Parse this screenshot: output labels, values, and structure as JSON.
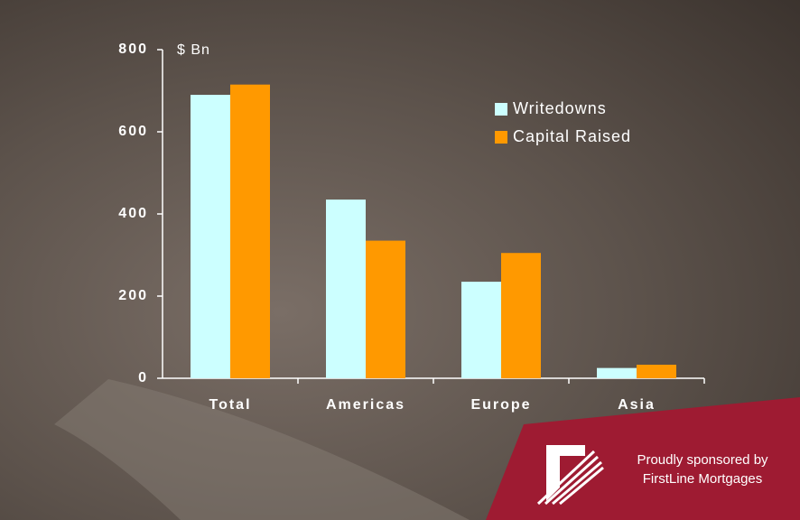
{
  "chart_data": {
    "type": "bar",
    "y_label": "$ Bn",
    "categories": [
      "Total",
      "Americas",
      "Europe",
      "Asia"
    ],
    "series": [
      {
        "name": "Writedowns",
        "color": "#ccffff",
        "values": [
          690,
          435,
          235,
          25
        ]
      },
      {
        "name": "Capital Raised",
        "color": "#ff9900",
        "values": [
          715,
          335,
          305,
          33
        ]
      }
    ],
    "ylim": [
      0,
      800
    ],
    "yticks": [
      0,
      200,
      400,
      600,
      800
    ],
    "grid": false,
    "legend": "top-right"
  },
  "sponsor": {
    "line1": "Proudly sponsored by",
    "line2": "FirstLine Mortgages"
  }
}
